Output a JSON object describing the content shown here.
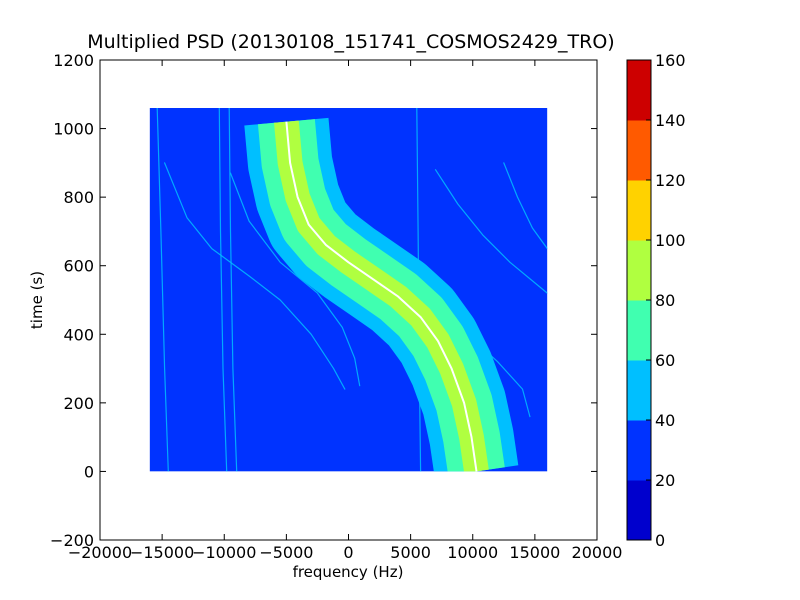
{
  "chart_data": {
    "type": "heatmap",
    "title": "Multiplied PSD (20130108_151741_COSMOS2429_TRO)",
    "xlabel": "frequency (Hz)",
    "ylabel": "time (s)",
    "xlim": [
      -20000,
      20000
    ],
    "ylim": [
      -200,
      1200
    ],
    "xticks": [
      -20000,
      -15000,
      -10000,
      -5000,
      0,
      5000,
      10000,
      15000,
      20000
    ],
    "xtick_labels": [
      "−20000",
      "−15000",
      "−10000",
      "−5000",
      "0",
      "5000",
      "10000",
      "15000",
      "20000"
    ],
    "yticks": [
      -200,
      0,
      200,
      400,
      600,
      800,
      1000,
      1200
    ],
    "ytick_labels": [
      "−200",
      "0",
      "200",
      "400",
      "600",
      "800",
      "1000",
      "1200"
    ],
    "data_extent": {
      "x": [
        -16000,
        16000
      ],
      "y": [
        0,
        1060
      ]
    },
    "background_level": 30,
    "main_trace": {
      "points": [
        [
          -5000,
          1020
        ],
        [
          -4700,
          900
        ],
        [
          -4100,
          800
        ],
        [
          -3200,
          720
        ],
        [
          -1800,
          660
        ],
        [
          0,
          610
        ],
        [
          2000,
          560
        ],
        [
          4000,
          510
        ],
        [
          5800,
          450
        ],
        [
          7200,
          380
        ],
        [
          8300,
          300
        ],
        [
          9300,
          200
        ],
        [
          9900,
          100
        ],
        [
          10300,
          0
        ]
      ],
      "band_halfwidths": [
        {
          "level": 50,
          "width": 3400
        },
        {
          "level": 70,
          "width": 2300
        },
        {
          "level": 90,
          "width": 1000
        },
        {
          "level": 150,
          "width": 60
        }
      ]
    },
    "faint_traces": [
      {
        "level": 50,
        "points": [
          [
            -15400,
            1060
          ],
          [
            -15100,
            700
          ],
          [
            -14800,
            300
          ],
          [
            -14500,
            0
          ]
        ]
      },
      {
        "level": 50,
        "points": [
          [
            -10400,
            1060
          ],
          [
            -10300,
            700
          ],
          [
            -10100,
            300
          ],
          [
            -9800,
            0
          ]
        ]
      },
      {
        "level": 45,
        "points": [
          [
            -9600,
            1060
          ],
          [
            -9500,
            700
          ],
          [
            -9300,
            300
          ],
          [
            -9000,
            0
          ]
        ]
      },
      {
        "level": 55,
        "points": [
          [
            -14800,
            900
          ],
          [
            -13000,
            740
          ],
          [
            -11000,
            650
          ],
          [
            -8000,
            570
          ],
          [
            -5500,
            500
          ],
          [
            -3000,
            400
          ],
          [
            -1200,
            300
          ],
          [
            -300,
            240
          ]
        ]
      },
      {
        "level": 50,
        "points": [
          [
            -9500,
            870
          ],
          [
            -8000,
            730
          ],
          [
            -5500,
            610
          ],
          [
            -2500,
            520
          ],
          [
            -500,
            420
          ],
          [
            500,
            330
          ],
          [
            900,
            250
          ]
        ]
      },
      {
        "level": 55,
        "points": [
          [
            -6500,
            870
          ],
          [
            -4500,
            720
          ],
          [
            -1500,
            620
          ],
          [
            2000,
            570
          ],
          [
            5500,
            500
          ],
          [
            9000,
            420
          ],
          [
            12000,
            320
          ],
          [
            14000,
            240
          ],
          [
            14600,
            160
          ]
        ]
      },
      {
        "level": 55,
        "points": [
          [
            7000,
            880
          ],
          [
            8800,
            780
          ],
          [
            10800,
            690
          ],
          [
            13000,
            610
          ],
          [
            16000,
            520
          ]
        ]
      },
      {
        "level": 55,
        "points": [
          [
            12500,
            900
          ],
          [
            13600,
            800
          ],
          [
            14800,
            710
          ],
          [
            16000,
            650
          ]
        ]
      },
      {
        "level": 45,
        "points": [
          [
            5500,
            1060
          ],
          [
            5600,
            700
          ],
          [
            5700,
            300
          ],
          [
            5800,
            0
          ]
        ]
      }
    ],
    "colorbar": {
      "min": 0,
      "max": 160,
      "tick_values": [
        0,
        20,
        40,
        60,
        80,
        100,
        120,
        140,
        160
      ],
      "tick_labels": [
        "0",
        "20",
        "40",
        "60",
        "80",
        "100",
        "120",
        "140",
        "160"
      ],
      "colors": [
        "#0000cd",
        "#0033ff",
        "#00bfff",
        "#40ffb0",
        "#b0ff40",
        "#ffd200",
        "#ff5a00",
        "#cd0000"
      ]
    }
  }
}
